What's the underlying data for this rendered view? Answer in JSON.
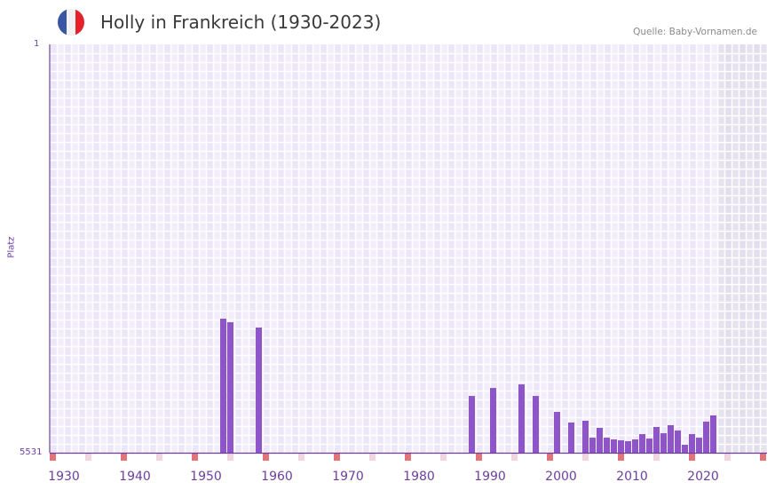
{
  "header": {
    "title": "Holly in Frankreich (1930-2023)",
    "source": "Quelle: Baby-Vornamen.de",
    "flag_colors": [
      "#3a55a4",
      "#f2f2f2",
      "#e5212b"
    ]
  },
  "chart_data": {
    "type": "bar",
    "title": "Holly in Frankreich (1930-2023)",
    "xlabel": "",
    "ylabel": "Platz",
    "ylim": [
      5531,
      1
    ],
    "y_ticks": [
      "1",
      "5531"
    ],
    "x_range": [
      1928,
      2028
    ],
    "x_ticks": [
      "1930",
      "1940",
      "1950",
      "1960",
      "1970",
      "1980",
      "1990",
      "2000",
      "2010",
      "2020"
    ],
    "future_shaded_from": 2022,
    "bar_color": "#8e55c8",
    "x": [
      1952,
      1953,
      1957,
      1987,
      1990,
      1994,
      1996,
      1999,
      2001,
      2003,
      2004,
      2005,
      2006,
      2007,
      2008,
      2009,
      2010,
      2011,
      2012,
      2013,
      2014,
      2015,
      2016,
      2017,
      2018,
      2019,
      2020,
      2021
    ],
    "values": [
      3716,
      3764,
      3836,
      4762,
      4654,
      4605,
      4762,
      4978,
      5122,
      5098,
      5327,
      5194,
      5327,
      5351,
      5363,
      5375,
      5351,
      5279,
      5339,
      5182,
      5267,
      5158,
      5230,
      5423,
      5279,
      5327,
      5110,
      5026
    ]
  }
}
